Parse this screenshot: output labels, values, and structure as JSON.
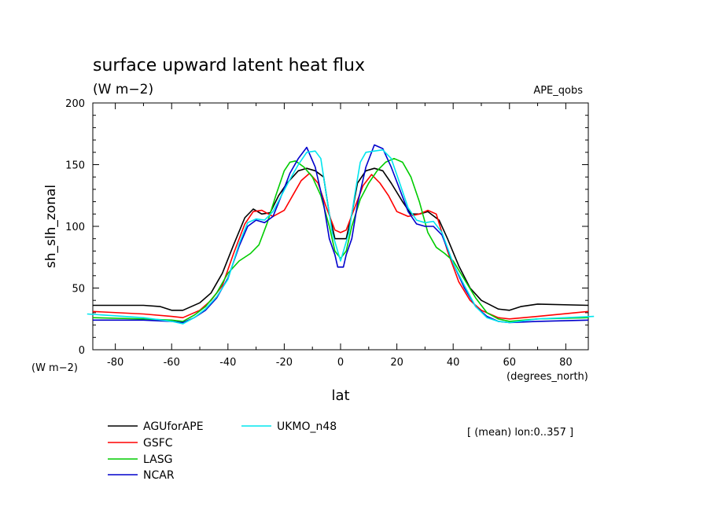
{
  "header": {
    "title": "surface upward latent heat flux",
    "units": "(W m−2)",
    "experiment": "APE_qobs"
  },
  "footer": {
    "x_units": "(degrees_north)",
    "y_units": "(W m−2)",
    "note": "[ (mean) lon:0..357 ]"
  },
  "chart_data": {
    "type": "line",
    "title": "surface upward latent heat flux",
    "subtitle": "(W m−2)",
    "xlabel": "lat",
    "ylabel": "sh_slh_zonal",
    "xlim": [
      -88,
      88
    ],
    "ylim": [
      0,
      200
    ],
    "xticks": [
      -80,
      -60,
      -40,
      -20,
      0,
      20,
      40,
      60,
      80
    ],
    "yticks": [
      0,
      50,
      100,
      150,
      200
    ],
    "grid": false,
    "legend_position": "bottom-left",
    "series": [
      {
        "name": "AGUforAPE",
        "color": "#000000",
        "points": [
          [
            -88,
            36
          ],
          [
            -70,
            36
          ],
          [
            -64,
            35
          ],
          [
            -60,
            32
          ],
          [
            -56,
            32
          ],
          [
            -50,
            38
          ],
          [
            -46,
            46
          ],
          [
            -42,
            62
          ],
          [
            -38,
            85
          ],
          [
            -34,
            107
          ],
          [
            -31,
            114
          ],
          [
            -28,
            110
          ],
          [
            -25,
            111
          ],
          [
            -22,
            125
          ],
          [
            -19,
            135
          ],
          [
            -15,
            145
          ],
          [
            -12,
            147
          ],
          [
            -9,
            145
          ],
          [
            -6,
            140
          ],
          [
            -4,
            110
          ],
          [
            -2,
            90
          ],
          [
            0,
            90
          ],
          [
            2,
            90
          ],
          [
            4,
            110
          ],
          [
            6,
            135
          ],
          [
            9,
            145
          ],
          [
            12,
            147
          ],
          [
            15,
            145
          ],
          [
            18,
            135
          ],
          [
            22,
            120
          ],
          [
            25,
            110
          ],
          [
            28,
            110
          ],
          [
            31,
            112
          ],
          [
            35,
            105
          ],
          [
            38,
            90
          ],
          [
            42,
            68
          ],
          [
            46,
            50
          ],
          [
            50,
            40
          ],
          [
            56,
            33
          ],
          [
            60,
            32
          ],
          [
            64,
            35
          ],
          [
            70,
            37
          ],
          [
            88,
            36
          ]
        ]
      },
      {
        "name": "GSFC",
        "color": "#ff0000",
        "points": [
          [
            -88,
            31
          ],
          [
            -70,
            29
          ],
          [
            -60,
            27
          ],
          [
            -56,
            26
          ],
          [
            -50,
            32
          ],
          [
            -46,
            40
          ],
          [
            -42,
            52
          ],
          [
            -38,
            78
          ],
          [
            -34,
            102
          ],
          [
            -31,
            112
          ],
          [
            -28,
            113
          ],
          [
            -24,
            108
          ],
          [
            -20,
            113
          ],
          [
            -17,
            125
          ],
          [
            -14,
            137
          ],
          [
            -11,
            143
          ],
          [
            -8,
            135
          ],
          [
            -5,
            115
          ],
          [
            -2,
            97
          ],
          [
            0,
            95
          ],
          [
            2,
            97
          ],
          [
            5,
            115
          ],
          [
            8,
            133
          ],
          [
            11,
            142
          ],
          [
            14,
            135
          ],
          [
            17,
            125
          ],
          [
            20,
            112
          ],
          [
            24,
            108
          ],
          [
            28,
            110
          ],
          [
            31,
            113
          ],
          [
            34,
            110
          ],
          [
            38,
            80
          ],
          [
            42,
            55
          ],
          [
            46,
            40
          ],
          [
            50,
            32
          ],
          [
            56,
            26
          ],
          [
            60,
            25
          ],
          [
            70,
            27
          ],
          [
            88,
            31
          ]
        ]
      },
      {
        "name": "LASG",
        "color": "#00cc00",
        "points": [
          [
            -88,
            26
          ],
          [
            -70,
            25
          ],
          [
            -60,
            24
          ],
          [
            -56,
            23
          ],
          [
            -52,
            28
          ],
          [
            -48,
            35
          ],
          [
            -44,
            46
          ],
          [
            -40,
            62
          ],
          [
            -36,
            72
          ],
          [
            -32,
            78
          ],
          [
            -29,
            85
          ],
          [
            -26,
            103
          ],
          [
            -23,
            125
          ],
          [
            -20,
            145
          ],
          [
            -18,
            152
          ],
          [
            -16,
            153
          ],
          [
            -13,
            148
          ],
          [
            -10,
            140
          ],
          [
            -7,
            125
          ],
          [
            -4,
            100
          ],
          [
            -2,
            80
          ],
          [
            0,
            74
          ],
          [
            2,
            80
          ],
          [
            4,
            100
          ],
          [
            7,
            122
          ],
          [
            10,
            135
          ],
          [
            13,
            145
          ],
          [
            16,
            152
          ],
          [
            19,
            155
          ],
          [
            22,
            152
          ],
          [
            25,
            140
          ],
          [
            28,
            120
          ],
          [
            31,
            95
          ],
          [
            34,
            83
          ],
          [
            37,
            78
          ],
          [
            40,
            72
          ],
          [
            44,
            57
          ],
          [
            48,
            42
          ],
          [
            52,
            30
          ],
          [
            56,
            25
          ],
          [
            60,
            23
          ],
          [
            70,
            25
          ],
          [
            88,
            26
          ]
        ]
      },
      {
        "name": "NCAR",
        "color": "#0000cc",
        "points": [
          [
            -88,
            24
          ],
          [
            -70,
            24
          ],
          [
            -60,
            23
          ],
          [
            -56,
            22
          ],
          [
            -52,
            26
          ],
          [
            -48,
            32
          ],
          [
            -44,
            42
          ],
          [
            -40,
            58
          ],
          [
            -36,
            84
          ],
          [
            -33,
            100
          ],
          [
            -30,
            105
          ],
          [
            -27,
            103
          ],
          [
            -24,
            108
          ],
          [
            -21,
            125
          ],
          [
            -18,
            143
          ],
          [
            -15,
            155
          ],
          [
            -12,
            164
          ],
          [
            -9,
            148
          ],
          [
            -6,
            118
          ],
          [
            -4,
            90
          ],
          [
            -2,
            77
          ],
          [
            -1,
            67
          ],
          [
            1,
            67
          ],
          [
            2,
            77
          ],
          [
            4,
            90
          ],
          [
            6,
            118
          ],
          [
            9,
            148
          ],
          [
            12,
            166
          ],
          [
            15,
            163
          ],
          [
            18,
            148
          ],
          [
            21,
            130
          ],
          [
            24,
            112
          ],
          [
            27,
            102
          ],
          [
            30,
            100
          ],
          [
            33,
            100
          ],
          [
            36,
            93
          ],
          [
            40,
            70
          ],
          [
            44,
            50
          ],
          [
            48,
            35
          ],
          [
            52,
            27
          ],
          [
            56,
            23
          ],
          [
            60,
            22
          ],
          [
            70,
            23
          ],
          [
            88,
            24
          ]
        ]
      },
      {
        "name": "UKMO_n48",
        "color": "#00e5ee",
        "points": [
          [
            -90,
            29
          ],
          [
            -70,
            26
          ],
          [
            -60,
            23
          ],
          [
            -56,
            21
          ],
          [
            -52,
            26
          ],
          [
            -48,
            33
          ],
          [
            -44,
            43
          ],
          [
            -40,
            57
          ],
          [
            -36,
            86
          ],
          [
            -33,
            103
          ],
          [
            -30,
            106
          ],
          [
            -27,
            105
          ],
          [
            -24,
            112
          ],
          [
            -21,
            125
          ],
          [
            -18,
            138
          ],
          [
            -15,
            150
          ],
          [
            -12,
            160
          ],
          [
            -9,
            161
          ],
          [
            -7,
            155
          ],
          [
            -5,
            125
          ],
          [
            -3,
            95
          ],
          [
            0,
            72
          ],
          [
            3,
            95
          ],
          [
            5,
            125
          ],
          [
            7,
            152
          ],
          [
            9,
            160
          ],
          [
            12,
            161
          ],
          [
            15,
            162
          ],
          [
            18,
            155
          ],
          [
            21,
            135
          ],
          [
            24,
            115
          ],
          [
            27,
            105
          ],
          [
            30,
            103
          ],
          [
            33,
            104
          ],
          [
            36,
            95
          ],
          [
            40,
            70
          ],
          [
            44,
            52
          ],
          [
            48,
            35
          ],
          [
            52,
            26
          ],
          [
            56,
            23
          ],
          [
            60,
            22
          ],
          [
            70,
            25
          ],
          [
            90,
            27
          ]
        ]
      }
    ]
  }
}
